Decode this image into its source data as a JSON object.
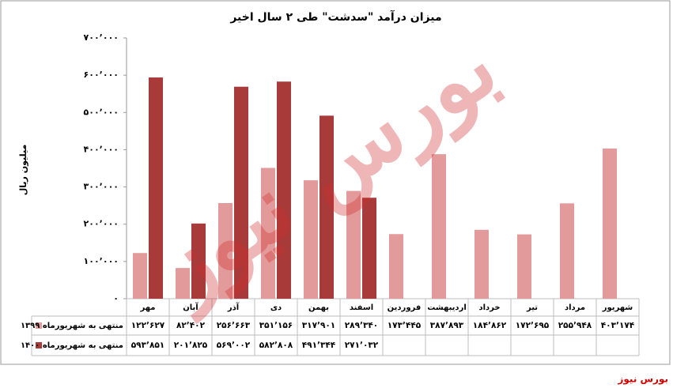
{
  "chart_data": {
    "type": "bar",
    "title": "میزان درآمد \"سدشت\" طی ۲ سال اخیر",
    "y_label": "میلیون ریال",
    "source": "بورس نیوز",
    "watermark": "بورس نیوز",
    "categories": [
      "مهر",
      "آبان",
      "آذر",
      "دی",
      "بهمن",
      "اسفند",
      "فروردین",
      "اردیبهشت",
      "خرداد",
      "تیر",
      "مرداد",
      "شهریور"
    ],
    "series": [
      {
        "name": "منتهی به شهریورماه ۱۳۹۹",
        "color": "#e39a9a",
        "values": [
          122627,
          82402,
          256663,
          351156,
          317901,
          289340,
          173445,
          387893,
          184862,
          172695,
          255948,
          403174
        ],
        "value_labels": [
          "۱۲۲٬۶۲۷",
          "۸۲٬۴۰۲",
          "۲۵۶٬۶۶۳",
          "۳۵۱٬۱۵۶",
          "۳۱۷٬۹۰۱",
          "۲۸۹٬۳۴۰",
          "۱۷۳٬۴۴۵",
          "۳۸۷٬۸۹۳",
          "۱۸۴٬۸۶۲",
          "۱۷۲٬۶۹۵",
          "۲۵۵٬۹۴۸",
          "۴۰۳٬۱۷۴"
        ]
      },
      {
        "name": "منتهی به شهریورماه ۱۴۰۰",
        "color": "#a83a3a",
        "values": [
          593851,
          201825,
          569002,
          582808,
          491344,
          271032,
          null,
          null,
          null,
          null,
          null,
          null
        ],
        "value_labels": [
          "۵۹۳٬۸۵۱",
          "۲۰۱٬۸۲۵",
          "۵۶۹٬۰۰۲",
          "۵۸۲٬۸۰۸",
          "۴۹۱٬۳۴۴",
          "۲۷۱٬۰۳۲",
          null,
          null,
          null,
          null,
          null,
          null
        ]
      }
    ],
    "ylim": [
      0,
      700000
    ],
    "yticks": [
      {
        "value": 0,
        "label": "۰"
      },
      {
        "value": 100000,
        "label": "۱۰۰٬۰۰۰"
      },
      {
        "value": 200000,
        "label": "۲۰۰٬۰۰۰"
      },
      {
        "value": 300000,
        "label": "۳۰۰٬۰۰۰"
      },
      {
        "value": 400000,
        "label": "۴۰۰٬۰۰۰"
      },
      {
        "value": 500000,
        "label": "۵۰۰٬۰۰۰"
      },
      {
        "value": 600000,
        "label": "۶۰۰٬۰۰۰"
      },
      {
        "value": 700000,
        "label": "۷۰۰٬۰۰۰"
      }
    ],
    "grid": false
  }
}
